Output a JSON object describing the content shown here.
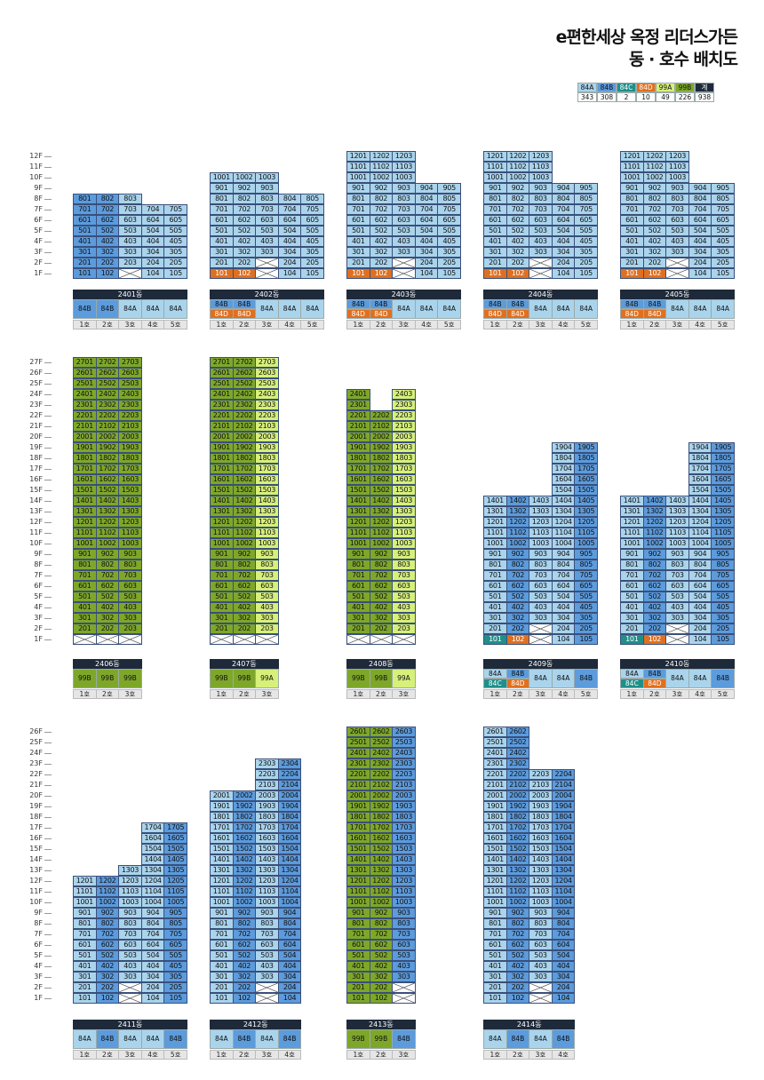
{
  "title": {
    "line1": "e편한세상 옥정 리더스가든",
    "line2": "동 · 호수 배치도"
  },
  "colors": {
    "84A": "#aad4ec",
    "84B": "#5c9bdc",
    "84C": "#1f8f8a",
    "84D": "#e07020",
    "99A": "#d6f07a",
    "99B": "#7ea72a",
    "계": "#1e2a3a",
    "X": "#ffffff"
  },
  "legend": [
    {
      "type": "84A",
      "count": "343"
    },
    {
      "type": "84B",
      "count": "308"
    },
    {
      "type": "84C",
      "count": "2"
    },
    {
      "type": "84D",
      "count": "10"
    },
    {
      "type": "99A",
      "count": "49"
    },
    {
      "type": "99B",
      "count": "226"
    },
    {
      "type": "계",
      "count": "938"
    }
  ],
  "buildings": [
    {
      "name": "2401동",
      "row": 0,
      "maxFloor": 12,
      "lines": [
        {
          "type": "84B",
          "floors": [
            1,
            8
          ],
          "xAt": []
        },
        {
          "type": "84B",
          "floors": [
            1,
            8
          ],
          "xAt": []
        },
        {
          "type": "84A",
          "floors": [
            1,
            8
          ],
          "xAt": [
            1
          ]
        },
        {
          "type": "84A",
          "floors": [
            1,
            7
          ],
          "xAt": []
        },
        {
          "type": "84A",
          "floors": [
            1,
            7
          ],
          "xAt": []
        }
      ],
      "special": {},
      "types": [
        "84B",
        "84B",
        "84A",
        "84A",
        "84A"
      ],
      "subTypes": []
    },
    {
      "name": "2402동",
      "row": 0,
      "maxFloor": 12,
      "lines": [
        {
          "type": "84A",
          "floors": [
            1,
            10
          ],
          "xAt": []
        },
        {
          "type": "84A",
          "floors": [
            1,
            10
          ],
          "xAt": []
        },
        {
          "type": "84A",
          "floors": [
            1,
            10
          ],
          "xAt": [
            1,
            2
          ]
        },
        {
          "type": "84A",
          "floors": [
            1,
            8
          ],
          "xAt": []
        },
        {
          "type": "84A",
          "floors": [
            1,
            8
          ],
          "xAt": []
        }
      ],
      "special": {
        "101": "84D",
        "102": "84D"
      },
      "types": [
        "84B",
        "84B",
        "84A",
        "84A",
        "84A"
      ],
      "subTypes": [
        "84D",
        "84D"
      ]
    },
    {
      "name": "2403동",
      "row": 0,
      "maxFloor": 12,
      "lines": [
        {
          "type": "84A",
          "floors": [
            1,
            12
          ],
          "xAt": []
        },
        {
          "type": "84A",
          "floors": [
            1,
            12
          ],
          "xAt": []
        },
        {
          "type": "84A",
          "floors": [
            1,
            12
          ],
          "xAt": [
            1,
            2
          ]
        },
        {
          "type": "84A",
          "floors": [
            1,
            9
          ],
          "xAt": []
        },
        {
          "type": "84A",
          "floors": [
            1,
            9
          ],
          "xAt": []
        }
      ],
      "special": {
        "101": "84D",
        "102": "84D"
      },
      "types": [
        "84B",
        "84B",
        "84A",
        "84A",
        "84A"
      ],
      "subTypes": [
        "84D",
        "84D"
      ]
    },
    {
      "name": "2404동",
      "row": 0,
      "maxFloor": 12,
      "lines": [
        {
          "type": "84A",
          "floors": [
            1,
            12
          ],
          "xAt": []
        },
        {
          "type": "84A",
          "floors": [
            1,
            12
          ],
          "xAt": []
        },
        {
          "type": "84A",
          "floors": [
            1,
            12
          ],
          "xAt": [
            1,
            2
          ]
        },
        {
          "type": "84A",
          "floors": [
            1,
            9
          ],
          "xAt": []
        },
        {
          "type": "84A",
          "floors": [
            1,
            9
          ],
          "xAt": []
        }
      ],
      "special": {
        "101": "84D",
        "102": "84D"
      },
      "types": [
        "84B",
        "84B",
        "84A",
        "84A",
        "84A"
      ],
      "subTypes": [
        "84D",
        "84D"
      ]
    },
    {
      "name": "2405동",
      "row": 0,
      "maxFloor": 12,
      "lines": [
        {
          "type": "84A",
          "floors": [
            1,
            12
          ],
          "xAt": []
        },
        {
          "type": "84A",
          "floors": [
            1,
            12
          ],
          "xAt": []
        },
        {
          "type": "84A",
          "floors": [
            1,
            12
          ],
          "xAt": [
            1,
            2
          ]
        },
        {
          "type": "84A",
          "floors": [
            1,
            9
          ],
          "xAt": []
        },
        {
          "type": "84A",
          "floors": [
            1,
            9
          ],
          "xAt": []
        }
      ],
      "special": {
        "101": "84D",
        "102": "84D"
      },
      "types": [
        "84B",
        "84B",
        "84A",
        "84A",
        "84A"
      ],
      "subTypes": [
        "84D",
        "84D"
      ]
    },
    {
      "name": "2406동",
      "row": 1,
      "maxFloor": 27,
      "lines": [
        {
          "type": "99B",
          "floors": [
            1,
            27
          ],
          "xAt": [
            1
          ]
        },
        {
          "type": "99B",
          "floors": [
            1,
            27
          ],
          "xAt": [
            1
          ]
        },
        {
          "type": "99B",
          "floors": [
            1,
            27
          ],
          "xAt": [
            1
          ]
        }
      ],
      "special": {},
      "types": [
        "99B",
        "99B",
        "99B"
      ],
      "subTypes": []
    },
    {
      "name": "2407동",
      "row": 1,
      "maxFloor": 27,
      "lines": [
        {
          "type": "99B",
          "floors": [
            1,
            27
          ],
          "xAt": [
            1
          ]
        },
        {
          "type": "99B",
          "floors": [
            1,
            27
          ],
          "xAt": [
            1
          ]
        },
        {
          "type": "99A",
          "floors": [
            1,
            27
          ],
          "xAt": [
            1
          ]
        }
      ],
      "special": {},
      "types": [
        "99B",
        "99B",
        "99A"
      ],
      "subTypes": []
    },
    {
      "name": "2408동",
      "row": 1,
      "maxFloor": 27,
      "lines": [
        {
          "type": "99B",
          "floors": [
            1,
            24
          ],
          "xAt": [
            1
          ]
        },
        {
          "type": "99B",
          "floors": [
            1,
            22
          ],
          "xAt": [
            1
          ]
        },
        {
          "type": "99A",
          "floors": [
            1,
            24
          ],
          "xAt": [
            1
          ]
        }
      ],
      "special": {},
      "types": [
        "99B",
        "99B",
        "99A"
      ],
      "subTypes": []
    },
    {
      "name": "2409동",
      "row": 1,
      "maxFloor": 27,
      "lines": [
        {
          "type": "84A",
          "floors": [
            1,
            14
          ],
          "xAt": []
        },
        {
          "type": "84B",
          "floors": [
            1,
            14
          ],
          "xAt": []
        },
        {
          "type": "84A",
          "floors": [
            1,
            14
          ],
          "xAt": [
            1,
            2
          ]
        },
        {
          "type": "84A",
          "floors": [
            1,
            19
          ],
          "xAt": []
        },
        {
          "type": "84B",
          "floors": [
            1,
            19
          ],
          "xAt": []
        }
      ],
      "special": {
        "101": "84C",
        "102": "84D"
      },
      "types": [
        "84A",
        "84B",
        "84A",
        "84A",
        "84B"
      ],
      "subTypes": [
        "84C",
        "84D"
      ]
    },
    {
      "name": "2410동",
      "row": 1,
      "maxFloor": 27,
      "lines": [
        {
          "type": "84A",
          "floors": [
            1,
            14
          ],
          "xAt": []
        },
        {
          "type": "84B",
          "floors": [
            1,
            14
          ],
          "xAt": []
        },
        {
          "type": "84A",
          "floors": [
            1,
            14
          ],
          "xAt": [
            1,
            2
          ]
        },
        {
          "type": "84A",
          "floors": [
            1,
            19
          ],
          "xAt": []
        },
        {
          "type": "84B",
          "floors": [
            1,
            19
          ],
          "xAt": []
        }
      ],
      "special": {
        "101": "84C",
        "102": "84D"
      },
      "types": [
        "84A",
        "84B",
        "84A",
        "84A",
        "84B"
      ],
      "subTypes": [
        "84C",
        "84D"
      ]
    },
    {
      "name": "2411동",
      "row": 2,
      "maxFloor": 26,
      "lines": [
        {
          "type": "84A",
          "floors": [
            1,
            12
          ],
          "xAt": []
        },
        {
          "type": "84B",
          "floors": [
            1,
            12
          ],
          "xAt": []
        },
        {
          "type": "84A",
          "floors": [
            1,
            13
          ],
          "xAt": [
            1,
            2
          ]
        },
        {
          "type": "84A",
          "floors": [
            1,
            17
          ],
          "xAt": []
        },
        {
          "type": "84B",
          "floors": [
            1,
            17
          ],
          "xAt": []
        }
      ],
      "special": {},
      "types": [
        "84A",
        "84B",
        "84A",
        "84A",
        "84B"
      ],
      "subTypes": []
    },
    {
      "name": "2412동",
      "row": 2,
      "maxFloor": 26,
      "lines": [
        {
          "type": "84A",
          "floors": [
            1,
            20
          ],
          "xAt": []
        },
        {
          "type": "84B",
          "floors": [
            1,
            20
          ],
          "xAt": []
        },
        {
          "type": "84A",
          "floors": [
            1,
            23
          ],
          "xAt": [
            1,
            2
          ]
        },
        {
          "type": "84B",
          "floors": [
            1,
            23
          ],
          "xAt": []
        }
      ],
      "special": {},
      "types": [
        "84A",
        "84B",
        "84A",
        "84B"
      ],
      "subTypes": []
    },
    {
      "name": "2413동",
      "row": 2,
      "maxFloor": 26,
      "lines": [
        {
          "type": "99B",
          "floors": [
            1,
            26
          ],
          "xAt": []
        },
        {
          "type": "99B",
          "floors": [
            1,
            26
          ],
          "xAt": []
        },
        {
          "type": "84B",
          "floors": [
            1,
            26
          ],
          "xAt": [
            1,
            2
          ]
        }
      ],
      "special": {},
      "types": [
        "99B",
        "99B",
        "84B"
      ],
      "subTypes": []
    },
    {
      "name": "2414동",
      "row": 2,
      "maxFloor": 26,
      "lines": [
        {
          "type": "84A",
          "floors": [
            1,
            26
          ],
          "xAt": []
        },
        {
          "type": "84B",
          "floors": [
            1,
            26
          ],
          "xAt": []
        },
        {
          "type": "84A",
          "floors": [
            1,
            22
          ],
          "xAt": [
            1,
            2
          ]
        },
        {
          "type": "84B",
          "floors": [
            1,
            22
          ],
          "xAt": []
        }
      ],
      "special": {},
      "types": [
        "84A",
        "84B",
        "84A",
        "84B"
      ],
      "subTypes": []
    }
  ],
  "ho_suffix": "호"
}
